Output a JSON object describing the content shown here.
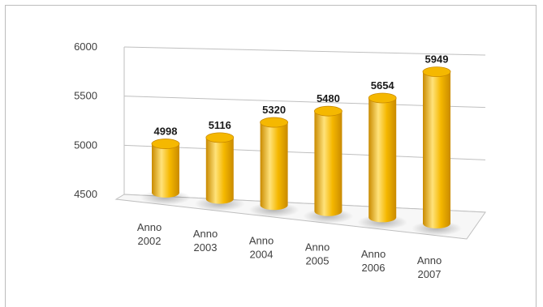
{
  "chart_data": {
    "type": "bar",
    "style": "3d-cylinder",
    "categories": [
      "Anno 2002",
      "Anno 2003",
      "Anno 2004",
      "Anno 2005",
      "Anno 2006",
      "Anno 2007"
    ],
    "category_lines": [
      [
        "Anno",
        "2002"
      ],
      [
        "Anno",
        "2003"
      ],
      [
        "Anno",
        "2004"
      ],
      [
        "Anno",
        "2005"
      ],
      [
        "Anno",
        "2006"
      ],
      [
        "Anno",
        "2007"
      ]
    ],
    "values": [
      4998,
      5116,
      5320,
      5480,
      5654,
      5949
    ],
    "data_labels": [
      "4998",
      "5116",
      "5320",
      "5480",
      "5654",
      "5949"
    ],
    "ylim": [
      4500,
      6000
    ],
    "yticks": [
      4500,
      5000,
      5500,
      6000
    ],
    "ytick_labels": [
      "4500",
      "5000",
      "5500",
      "6000"
    ],
    "grid": true,
    "legend": "none",
    "bar_color": "#F5B800",
    "bar_shade_color": "#C98A00",
    "bar_highlight_color": "#FFE27A",
    "title": "",
    "xlabel": "",
    "ylabel": ""
  }
}
